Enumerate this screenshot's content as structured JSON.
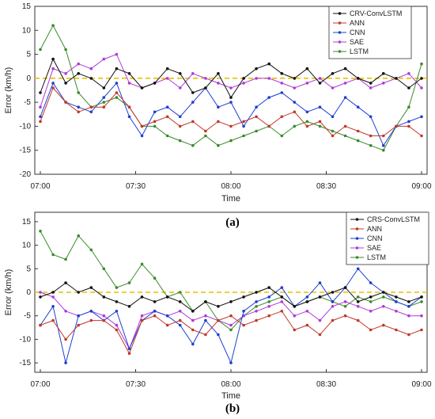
{
  "chart_data": [
    {
      "type": "line",
      "panel_label": "(a)",
      "xlabel": "Time",
      "ylabel": "Error (km/h)",
      "x_ticks": [
        "07:00",
        "07:30",
        "08:00",
        "08:30",
        "09:00"
      ],
      "x_range_minutes": [
        0,
        120
      ],
      "y_ticks": [
        15,
        10,
        5,
        0,
        -5,
        -10,
        -15,
        -20
      ],
      "ylim": [
        -20,
        15
      ],
      "reference_line": {
        "y": 0,
        "color": "#e5c100",
        "style": "dashed"
      },
      "legend_position": "top-right",
      "series": [
        {
          "name": "CRV-ConvLSTM",
          "color": "#111111",
          "x": [
            0,
            4,
            8,
            12,
            16,
            20,
            24,
            28,
            32,
            36,
            40,
            44,
            48,
            52,
            56,
            60,
            64,
            68,
            72,
            76,
            80,
            84,
            88,
            92,
            96,
            100,
            104,
            108,
            112,
            116,
            120
          ],
          "values": [
            -3,
            4,
            -1,
            1,
            0,
            -2,
            2,
            1,
            -2,
            -1,
            2,
            1,
            -3,
            -2,
            1,
            -4,
            0,
            2,
            3,
            1,
            0,
            2,
            -1,
            1,
            2,
            0,
            -1,
            1,
            0,
            -2,
            0
          ]
        },
        {
          "name": "ANN",
          "color": "#c0392b",
          "x": [
            0,
            4,
            8,
            12,
            16,
            20,
            24,
            28,
            32,
            36,
            40,
            44,
            48,
            52,
            56,
            60,
            64,
            68,
            72,
            76,
            80,
            84,
            88,
            92,
            96,
            100,
            104,
            108,
            112,
            116,
            120
          ],
          "values": [
            -9,
            -2,
            -5,
            -7,
            -6,
            -6,
            -3,
            -6,
            -10,
            -9,
            -8,
            -10,
            -9,
            -11,
            -9,
            -10,
            -9,
            -8,
            -10,
            -8,
            -7,
            -10,
            -9,
            -12,
            -10,
            -11,
            -12,
            -12,
            -10,
            -10,
            -12
          ]
        },
        {
          "name": "CNN",
          "color": "#1f3fd1",
          "x": [
            0,
            4,
            8,
            12,
            16,
            20,
            24,
            28,
            32,
            36,
            40,
            44,
            48,
            52,
            56,
            60,
            64,
            68,
            72,
            76,
            80,
            84,
            88,
            92,
            96,
            100,
            104,
            108,
            112,
            116,
            120
          ],
          "values": [
            -8,
            -1,
            -5,
            -6,
            -7,
            -4,
            -1,
            -8,
            -12,
            -7,
            -6,
            -8,
            -5,
            -2,
            -6,
            -5,
            -10,
            -6,
            -4,
            -3,
            -5,
            -7,
            -6,
            -8,
            -4,
            -6,
            -8,
            -14,
            -10,
            -9,
            -8
          ]
        },
        {
          "name": "SAE",
          "color": "#b03ad8",
          "x": [
            0,
            4,
            8,
            12,
            16,
            20,
            24,
            28,
            32,
            36,
            40,
            44,
            48,
            52,
            56,
            60,
            64,
            68,
            72,
            76,
            80,
            84,
            88,
            92,
            96,
            100,
            104,
            108,
            112,
            116,
            120
          ],
          "values": [
            -6,
            2,
            1,
            3,
            2,
            4,
            5,
            -1,
            -2,
            -1,
            0,
            -2,
            1,
            0,
            -1,
            -2,
            -1,
            0,
            0,
            -1,
            -2,
            -1,
            0,
            -2,
            -1,
            0,
            -2,
            -1,
            0,
            1,
            -2
          ]
        },
        {
          "name": "LSTM",
          "color": "#3a8a2c",
          "x": [
            0,
            4,
            8,
            12,
            16,
            20,
            24,
            28,
            32,
            36,
            40,
            44,
            48,
            52,
            56,
            60,
            64,
            68,
            72,
            76,
            80,
            84,
            88,
            92,
            96,
            100,
            104,
            108,
            112,
            116,
            120
          ],
          "values": [
            6,
            11,
            6,
            -3,
            -6,
            -5,
            -4,
            -6,
            -10,
            -10,
            -12,
            -13,
            -14,
            -12,
            -14,
            -13,
            -12,
            -11,
            -10,
            -12,
            -10,
            -9,
            -10,
            -11,
            -12,
            -13,
            -14,
            -15,
            -10,
            -6,
            3
          ]
        }
      ]
    },
    {
      "type": "line",
      "panel_label": "(b)",
      "xlabel": "Time",
      "ylabel": "Error (km/h)",
      "x_ticks": [
        "07:00",
        "07:30",
        "08:00",
        "08:30",
        "09:00"
      ],
      "x_range_minutes": [
        0,
        120
      ],
      "y_ticks": [
        15,
        10,
        5,
        0,
        -5,
        -10,
        -15
      ],
      "ylim": [
        -17,
        17
      ],
      "reference_line": {
        "y": 0,
        "color": "#e5c100",
        "style": "dashed"
      },
      "legend_position": "top-right",
      "series": [
        {
          "name": "CRS-ConvLSTM",
          "color": "#111111",
          "x": [
            0,
            4,
            8,
            12,
            16,
            20,
            24,
            28,
            32,
            36,
            40,
            44,
            48,
            52,
            56,
            60,
            64,
            68,
            72,
            76,
            80,
            84,
            88,
            92,
            96,
            100,
            104,
            108,
            112,
            116,
            120
          ],
          "values": [
            -1,
            0,
            2,
            0,
            1,
            -1,
            -2,
            -3,
            -1,
            -2,
            -1,
            -2,
            -4,
            -2,
            -3,
            -2,
            -1,
            0,
            1,
            -1,
            -3,
            -2,
            -1,
            0,
            1,
            -2,
            -1,
            0,
            -1,
            -2,
            -1
          ]
        },
        {
          "name": "ANN",
          "color": "#c0392b",
          "x": [
            0,
            4,
            8,
            12,
            16,
            20,
            24,
            28,
            32,
            36,
            40,
            44,
            48,
            52,
            56,
            60,
            64,
            68,
            72,
            76,
            80,
            84,
            88,
            92,
            96,
            100,
            104,
            108,
            112,
            116,
            120
          ],
          "values": [
            -7,
            -6,
            -10,
            -7,
            -6,
            -6,
            -8,
            -13,
            -6,
            -5,
            -7,
            -6,
            -8,
            -9,
            -6,
            -5,
            -7,
            -6,
            -5,
            -4,
            -8,
            -7,
            -9,
            -6,
            -5,
            -6,
            -8,
            -7,
            -8,
            -9,
            -8
          ]
        },
        {
          "name": "CNN",
          "color": "#1f3fd1",
          "x": [
            0,
            4,
            8,
            12,
            16,
            20,
            24,
            28,
            32,
            36,
            40,
            44,
            48,
            52,
            56,
            60,
            64,
            68,
            72,
            76,
            80,
            84,
            88,
            92,
            96,
            100,
            104,
            108,
            112,
            116,
            120
          ],
          "values": [
            -7,
            -3,
            -15,
            -5,
            -4,
            -6,
            -4,
            -12,
            -6,
            -4,
            -5,
            -7,
            -11,
            -6,
            -9,
            -15,
            -4,
            -2,
            -1,
            1,
            -3,
            -1,
            2,
            -2,
            1,
            5,
            2,
            0,
            -2,
            -3,
            -1
          ]
        },
        {
          "name": "SAE",
          "color": "#b03ad8",
          "x": [
            0,
            4,
            8,
            12,
            16,
            20,
            24,
            28,
            32,
            36,
            40,
            44,
            48,
            52,
            56,
            60,
            64,
            68,
            72,
            76,
            80,
            84,
            88,
            92,
            96,
            100,
            104,
            108,
            112,
            116,
            120
          ],
          "values": [
            0,
            -1,
            -4,
            -5,
            -4,
            -5,
            -7,
            -12,
            -5,
            -4,
            -5,
            -4,
            -6,
            -5,
            -6,
            -7,
            -5,
            -4,
            -3,
            -2,
            -5,
            -4,
            -6,
            -3,
            -2,
            -3,
            -4,
            -3,
            -4,
            -5,
            -5
          ]
        },
        {
          "name": "LSTM",
          "color": "#3a8a2c",
          "x": [
            0,
            4,
            8,
            12,
            16,
            20,
            24,
            28,
            32,
            36,
            40,
            44,
            48,
            52,
            56,
            60,
            64,
            68,
            72,
            76,
            80,
            84,
            88,
            92,
            96,
            100,
            104,
            108,
            112,
            116,
            120
          ],
          "values": [
            13,
            8,
            7,
            12,
            9,
            5,
            1,
            2,
            6,
            3,
            -1,
            0,
            -4,
            -2,
            -6,
            -8,
            -5,
            -3,
            -2,
            -1,
            -3,
            -2,
            -1,
            -2,
            -3,
            -1,
            -2,
            -1,
            -2,
            -3,
            -2
          ]
        }
      ]
    }
  ]
}
